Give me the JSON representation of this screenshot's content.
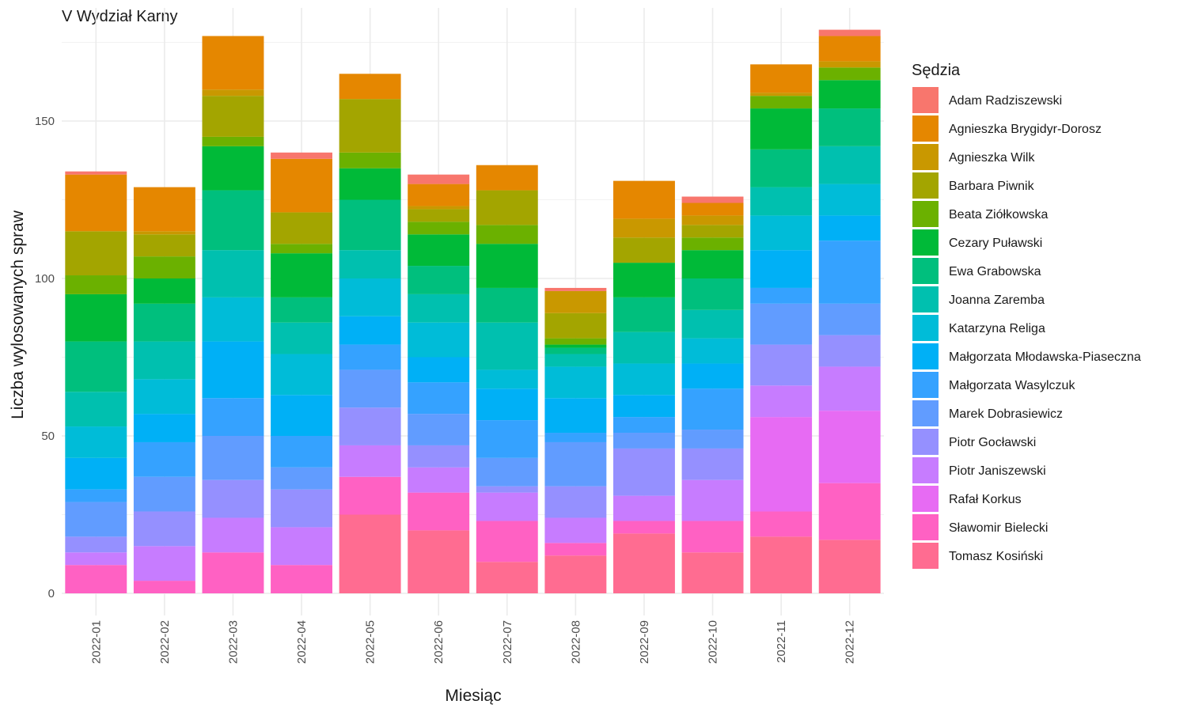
{
  "chart_data": {
    "type": "bar",
    "stacked": true,
    "title": "V Wydział Karny",
    "xlabel": "Miesiąc",
    "ylabel": "Liczba wylosowanych spraw",
    "ylim": [
      0,
      180
    ],
    "yticks": [
      0,
      50,
      100,
      150
    ],
    "grid": true,
    "legend_title": "Sędzia",
    "legend_position": "right",
    "categories": [
      "2022-01",
      "2022-02",
      "2022-03",
      "2022-04",
      "2022-05",
      "2022-06",
      "2022-07",
      "2022-08",
      "2022-09",
      "2022-10",
      "2022-11",
      "2022-12"
    ],
    "series": [
      {
        "name": "Adam Radziszewski",
        "color": "#F8766D",
        "values": [
          1,
          0,
          0,
          2,
          0,
          3,
          0,
          1,
          0,
          2,
          0,
          2
        ]
      },
      {
        "name": "Agnieszka Brygidyr-Dorosz",
        "color": "#E58700",
        "values": [
          18,
          14,
          17,
          17,
          8,
          7,
          8,
          0,
          12,
          4,
          9,
          8
        ]
      },
      {
        "name": "Agnieszka Wilk",
        "color": "#C99800",
        "values": [
          0,
          1,
          2,
          0,
          0,
          1,
          0,
          7,
          6,
          3,
          1,
          2
        ]
      },
      {
        "name": "Barbara Piwnik",
        "color": "#A3A500",
        "values": [
          14,
          7,
          13,
          10,
          17,
          4,
          11,
          8,
          8,
          4,
          0,
          0
        ]
      },
      {
        "name": "Beata Ziółkowska",
        "color": "#6BB100",
        "values": [
          6,
          7,
          3,
          3,
          5,
          4,
          6,
          2,
          0,
          4,
          4,
          4
        ]
      },
      {
        "name": "Cezary Puławski",
        "color": "#00BA38",
        "values": [
          15,
          8,
          14,
          14,
          10,
          10,
          14,
          1,
          11,
          9,
          13,
          9
        ]
      },
      {
        "name": "Ewa Grabowska",
        "color": "#00BF7D",
        "values": [
          16,
          12,
          19,
          8,
          16,
          9,
          11,
          2,
          11,
          10,
          12,
          12
        ]
      },
      {
        "name": "Joanna Zaremba",
        "color": "#00C0AF",
        "values": [
          11,
          12,
          15,
          10,
          9,
          9,
          15,
          4,
          10,
          9,
          9,
          12
        ]
      },
      {
        "name": "Katarzyna Religa",
        "color": "#00BCD8",
        "values": [
          10,
          11,
          14,
          13,
          12,
          11,
          6,
          10,
          10,
          8,
          11,
          10
        ]
      },
      {
        "name": "Małgorzata Młodawska-Piaseczna",
        "color": "#00B0F6",
        "values": [
          10,
          9,
          18,
          13,
          9,
          8,
          10,
          11,
          7,
          8,
          12,
          8
        ]
      },
      {
        "name": "Małgorzata Wasylczuk",
        "color": "#35A2FF",
        "values": [
          4,
          11,
          12,
          10,
          8,
          10,
          12,
          3,
          5,
          13,
          5,
          20
        ]
      },
      {
        "name": "Marek Dobrasiewicz",
        "color": "#619CFF",
        "values": [
          11,
          11,
          14,
          7,
          12,
          10,
          9,
          14,
          5,
          6,
          13,
          10
        ]
      },
      {
        "name": "Piotr Gocławski",
        "color": "#9590FF",
        "values": [
          5,
          11,
          12,
          12,
          12,
          7,
          2,
          10,
          15,
          10,
          13,
          10
        ]
      },
      {
        "name": "Piotr Janiszewski",
        "color": "#C77CFF",
        "values": [
          4,
          11,
          11,
          12,
          10,
          8,
          9,
          8,
          8,
          13,
          10,
          14
        ]
      },
      {
        "name": "Rafał Korkus",
        "color": "#E76BF3",
        "values": [
          0,
          0,
          0,
          0,
          0,
          0,
          0,
          0,
          0,
          0,
          30,
          23
        ]
      },
      {
        "name": "Sławomir Bielecki",
        "color": "#FF61C3",
        "values": [
          9,
          4,
          13,
          9,
          12,
          12,
          13,
          4,
          4,
          10,
          8,
          18
        ]
      },
      {
        "name": "Tomasz Kosiński",
        "color": "#FF6C91",
        "values": [
          0,
          0,
          0,
          0,
          25,
          20,
          10,
          12,
          19,
          13,
          18,
          17
        ]
      }
    ]
  }
}
